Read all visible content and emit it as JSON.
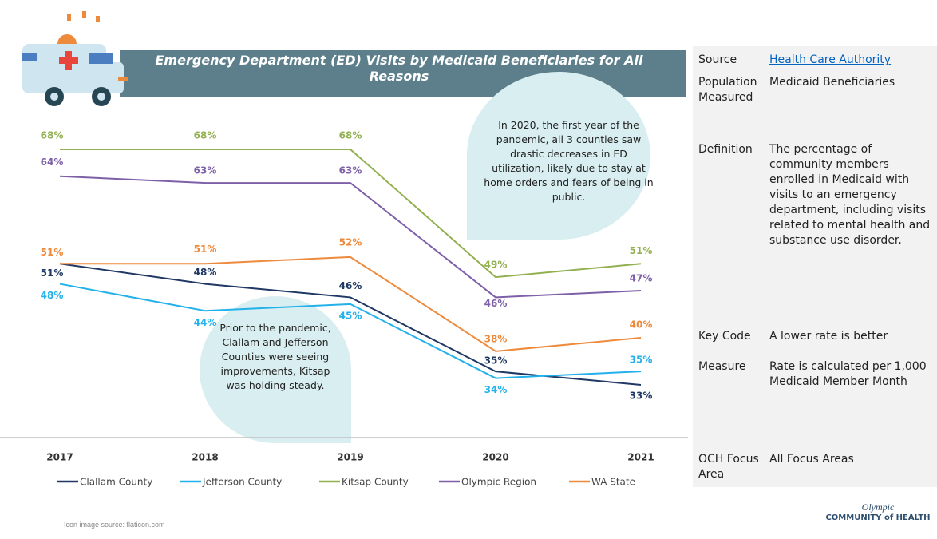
{
  "chart_data": {
    "type": "line",
    "title": "Emergency Department (ED) Visits by Medicaid Beneficiaries for All Reasons",
    "categories": [
      "2017",
      "2018",
      "2019",
      "2020",
      "2021"
    ],
    "series": [
      {
        "name": "Clallam County",
        "color": "#1f3864",
        "values": [
          51,
          48,
          46,
          35,
          33
        ],
        "value_labels": [
          "51%",
          "48%",
          "46%",
          "35%",
          "33%"
        ]
      },
      {
        "name": "Jefferson County",
        "color": "#22b1ea",
        "values": [
          48,
          44,
          45,
          34,
          35
        ],
        "value_labels": [
          "48%",
          "44%",
          "45%",
          "34%",
          "35%"
        ]
      },
      {
        "name": "Kitsap County",
        "color": "#92b050",
        "values": [
          68,
          68,
          68,
          49,
          51
        ],
        "value_labels": [
          "68%",
          "68%",
          "68%",
          "49%",
          "51%"
        ]
      },
      {
        "name": "Olympic Region",
        "color": "#7d60a8",
        "values": [
          64,
          63,
          63,
          46,
          47
        ],
        "value_labels": [
          "64%",
          "63%",
          "63%",
          "46%",
          "47%"
        ]
      },
      {
        "name": "WA State",
        "color": "#ee8a3c",
        "values": [
          51,
          51,
          52,
          38,
          40
        ],
        "value_labels": [
          "51%",
          "51%",
          "52%",
          "38%",
          "40%"
        ]
      }
    ],
    "annotations": [
      "In 2020, the first year of the pandemic, all 3 counties saw drastic decreases in ED utilization, likely due to stay at home orders and fears of being in public.",
      "Prior to the pandemic, Clallam and Jefferson Counties were seeing improvements, Kitsap was holding steady."
    ]
  },
  "info_table": {
    "rows": [
      {
        "label": "Source",
        "value": "Health Care Authority"
      },
      {
        "label": "Population Measured",
        "value": "Medicaid Beneficiaries"
      },
      {
        "label": "Definition",
        "value": "The percentage of community members enrolled in Medicaid with visits to an emergency department, including visits related to mental health and substance use disorder."
      },
      {
        "label": "Key Code",
        "value": "A lower rate is better"
      },
      {
        "label": "Measure",
        "value": "Rate is calculated per 1,000 Medicaid Member Month"
      },
      {
        "label": "OCH Focus Area",
        "value": "All Focus Areas"
      }
    ]
  },
  "footer": {
    "credit": "Icon image source: flaticon.com",
    "logo_top": "Olympic",
    "logo_bottom": "COMMUNITY of HEALTH"
  }
}
